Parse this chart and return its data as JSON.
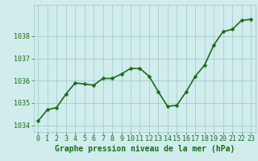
{
  "x": [
    0,
    1,
    2,
    3,
    4,
    5,
    6,
    7,
    8,
    9,
    10,
    11,
    12,
    13,
    14,
    15,
    16,
    17,
    18,
    19,
    20,
    21,
    22,
    23
  ],
  "y": [
    1034.2,
    1034.7,
    1034.8,
    1035.4,
    1035.9,
    1035.85,
    1035.8,
    1036.1,
    1036.1,
    1036.3,
    1036.55,
    1036.55,
    1036.2,
    1035.5,
    1034.85,
    1034.9,
    1035.5,
    1036.2,
    1036.7,
    1037.6,
    1038.2,
    1038.3,
    1038.7,
    1038.75
  ],
  "line_color": "#1a6e1a",
  "marker": "D",
  "marker_size": 2.5,
  "bg_color": "#d0ecec",
  "grid_color": "#a0c8c8",
  "xlabel": "Graphe pression niveau de la mer (hPa)",
  "xlabel_color": "#1a6e1a",
  "xlabel_fontsize": 7,
  "ytick_labels": [
    "1034",
    "1035",
    "1036",
    "1037",
    "1038"
  ],
  "ytick_values": [
    1034,
    1035,
    1036,
    1037,
    1038
  ],
  "ylim": [
    1033.7,
    1039.4
  ],
  "xlim": [
    -0.5,
    23.5
  ],
  "xtick_labels": [
    "0",
    "1",
    "2",
    "3",
    "4",
    "5",
    "6",
    "7",
    "8",
    "9",
    "10",
    "11",
    "12",
    "13",
    "14",
    "15",
    "16",
    "17",
    "18",
    "19",
    "20",
    "21",
    "22",
    "23"
  ],
  "tick_fontsize": 6,
  "linewidth": 1.2
}
